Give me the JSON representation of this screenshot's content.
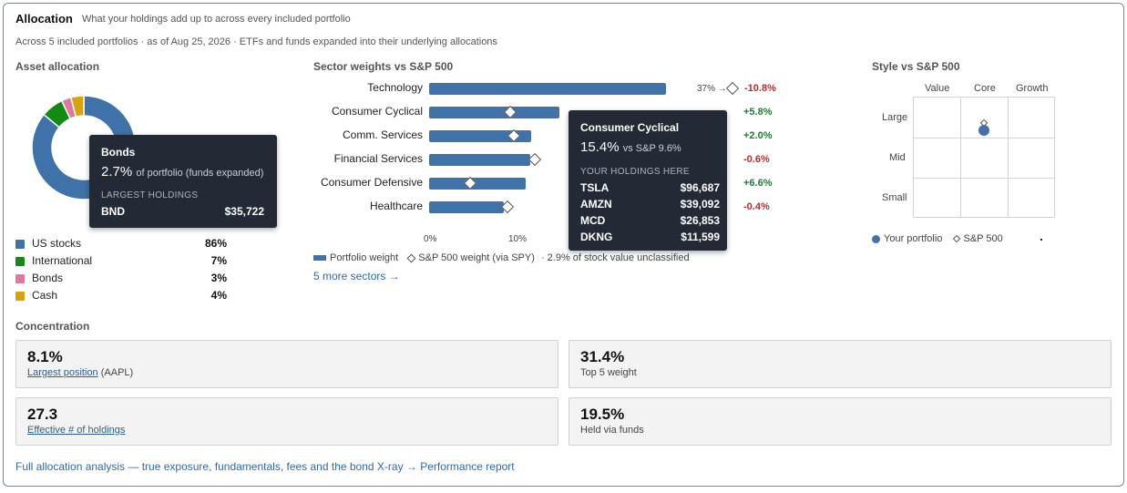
{
  "header": {
    "title": "Allocation",
    "subtitle": "What your holdings add up to across every included portfolio",
    "meta": "Across 5 included portfolios · as of Aug 25, 2026 · ETFs and funds expanded into their underlying allocations"
  },
  "asset_allocation": {
    "heading": "Asset allocation",
    "items": [
      {
        "label": "US stocks",
        "pct_label": "86%",
        "value": 86,
        "color": "#3f72a8"
      },
      {
        "label": "International",
        "pct_label": "7%",
        "value": 7,
        "color": "#138a13"
      },
      {
        "label": "Bonds",
        "pct_label": "3%",
        "value": 3,
        "color": "#e0779c"
      },
      {
        "label": "Cash",
        "pct_label": "4%",
        "value": 4,
        "color": "#d6a308"
      }
    ],
    "tooltip": {
      "title": "Bonds",
      "value": "2.7%",
      "value_note": "of portfolio (funds expanded)",
      "caption": "LARGEST HOLDINGS",
      "rows": [
        {
          "ticker": "BND",
          "amount": "$35,722"
        }
      ]
    }
  },
  "sector": {
    "heading": "Sector weights vs S&P 500",
    "rows": [
      {
        "label": "Technology",
        "portfolio": 37,
        "sp": 47.8,
        "delta": "-10.8%",
        "positive": false,
        "overflow_label": "37%"
      },
      {
        "label": "Consumer Cyclical",
        "portfolio": 15.4,
        "sp": 9.6,
        "delta": "+5.8%",
        "positive": true
      },
      {
        "label": "Comm. Services",
        "portfolio": 12.0,
        "sp": 10.0,
        "delta": "+2.0%",
        "positive": true
      },
      {
        "label": "Financial Services",
        "portfolio": 11.9,
        "sp": 12.5,
        "delta": "-0.6%",
        "positive": false
      },
      {
        "label": "Consumer Defensive",
        "portfolio": 11.4,
        "sp": 4.8,
        "delta": "+6.6%",
        "positive": true
      },
      {
        "label": "Healthcare",
        "portfolio": 8.8,
        "sp": 9.2,
        "delta": "-0.4%",
        "positive": false
      }
    ],
    "axis_ticks": [
      "0%",
      "10%"
    ],
    "legend": {
      "portfolio": "Portfolio weight",
      "sp": "S&P 500 weight (via SPY)",
      "note": "· 2.9% of stock value unclassified"
    },
    "more_link": "5 more sectors →",
    "tooltip": {
      "title": "Consumer Cyclical",
      "value": "15.4%",
      "value_note": "vs S&P 9.6%",
      "caption": "YOUR HOLDINGS HERE",
      "rows": [
        {
          "ticker": "TSLA",
          "amount": "$96,687"
        },
        {
          "ticker": "AMZN",
          "amount": "$39,092"
        },
        {
          "ticker": "MCD",
          "amount": "$26,853"
        },
        {
          "ticker": "DKNG",
          "amount": "$11,599"
        }
      ]
    },
    "bar_color": "#3f72a8"
  },
  "style_box": {
    "heading": "Style vs S&P 500",
    "columns": [
      "Value",
      "Core",
      "Growth"
    ],
    "rows": [
      "Large",
      "Mid",
      "Small"
    ],
    "portfolio_cell": {
      "row": "Large",
      "column": "Core"
    },
    "sp_cell": {
      "row": "Large",
      "column": "Core"
    },
    "legend": {
      "portfolio": "Your portfolio",
      "sp": "S&P 500"
    }
  },
  "concentration": {
    "heading": "Concentration",
    "cards": [
      {
        "value": "8.1%",
        "link_text": "Largest position",
        "suffix": " (AAPL)"
      },
      {
        "value": "31.4%",
        "label": "Top 5 weight"
      },
      {
        "value": "27.3",
        "link_text": "Effective # of holdings",
        "suffix": ""
      },
      {
        "value": "19.5%",
        "label": "Held via funds"
      }
    ]
  },
  "footer": {
    "link": "Full allocation analysis — true exposure, fundamentals, fees and the bond X-ray → Performance report"
  }
}
